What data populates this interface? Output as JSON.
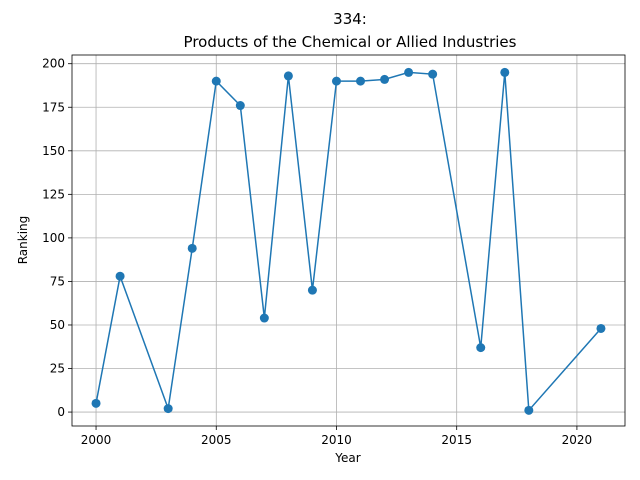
{
  "chart_data": {
    "type": "line",
    "title_line1": "334:",
    "title_line2": "Products of the Chemical or Allied Industries",
    "xlabel": "Year",
    "ylabel": "Ranking",
    "xlim": [
      1999,
      2022
    ],
    "ylim": [
      -8,
      205
    ],
    "xticks": [
      2000,
      2005,
      2010,
      2015,
      2020
    ],
    "yticks": [
      0,
      25,
      50,
      75,
      100,
      125,
      150,
      175,
      200
    ],
    "grid": true,
    "color": "#1f77b4",
    "series": [
      {
        "x": [
          2000,
          2001,
          2003,
          2004,
          2005,
          2006,
          2007,
          2008,
          2009,
          2010,
          2011,
          2012,
          2013,
          2014,
          2016,
          2017,
          2018,
          2021
        ],
        "y": [
          5,
          78,
          2,
          94,
          190,
          176,
          54,
          193,
          70,
          190,
          190,
          191,
          195,
          194,
          37,
          195,
          1,
          48
        ]
      }
    ]
  }
}
